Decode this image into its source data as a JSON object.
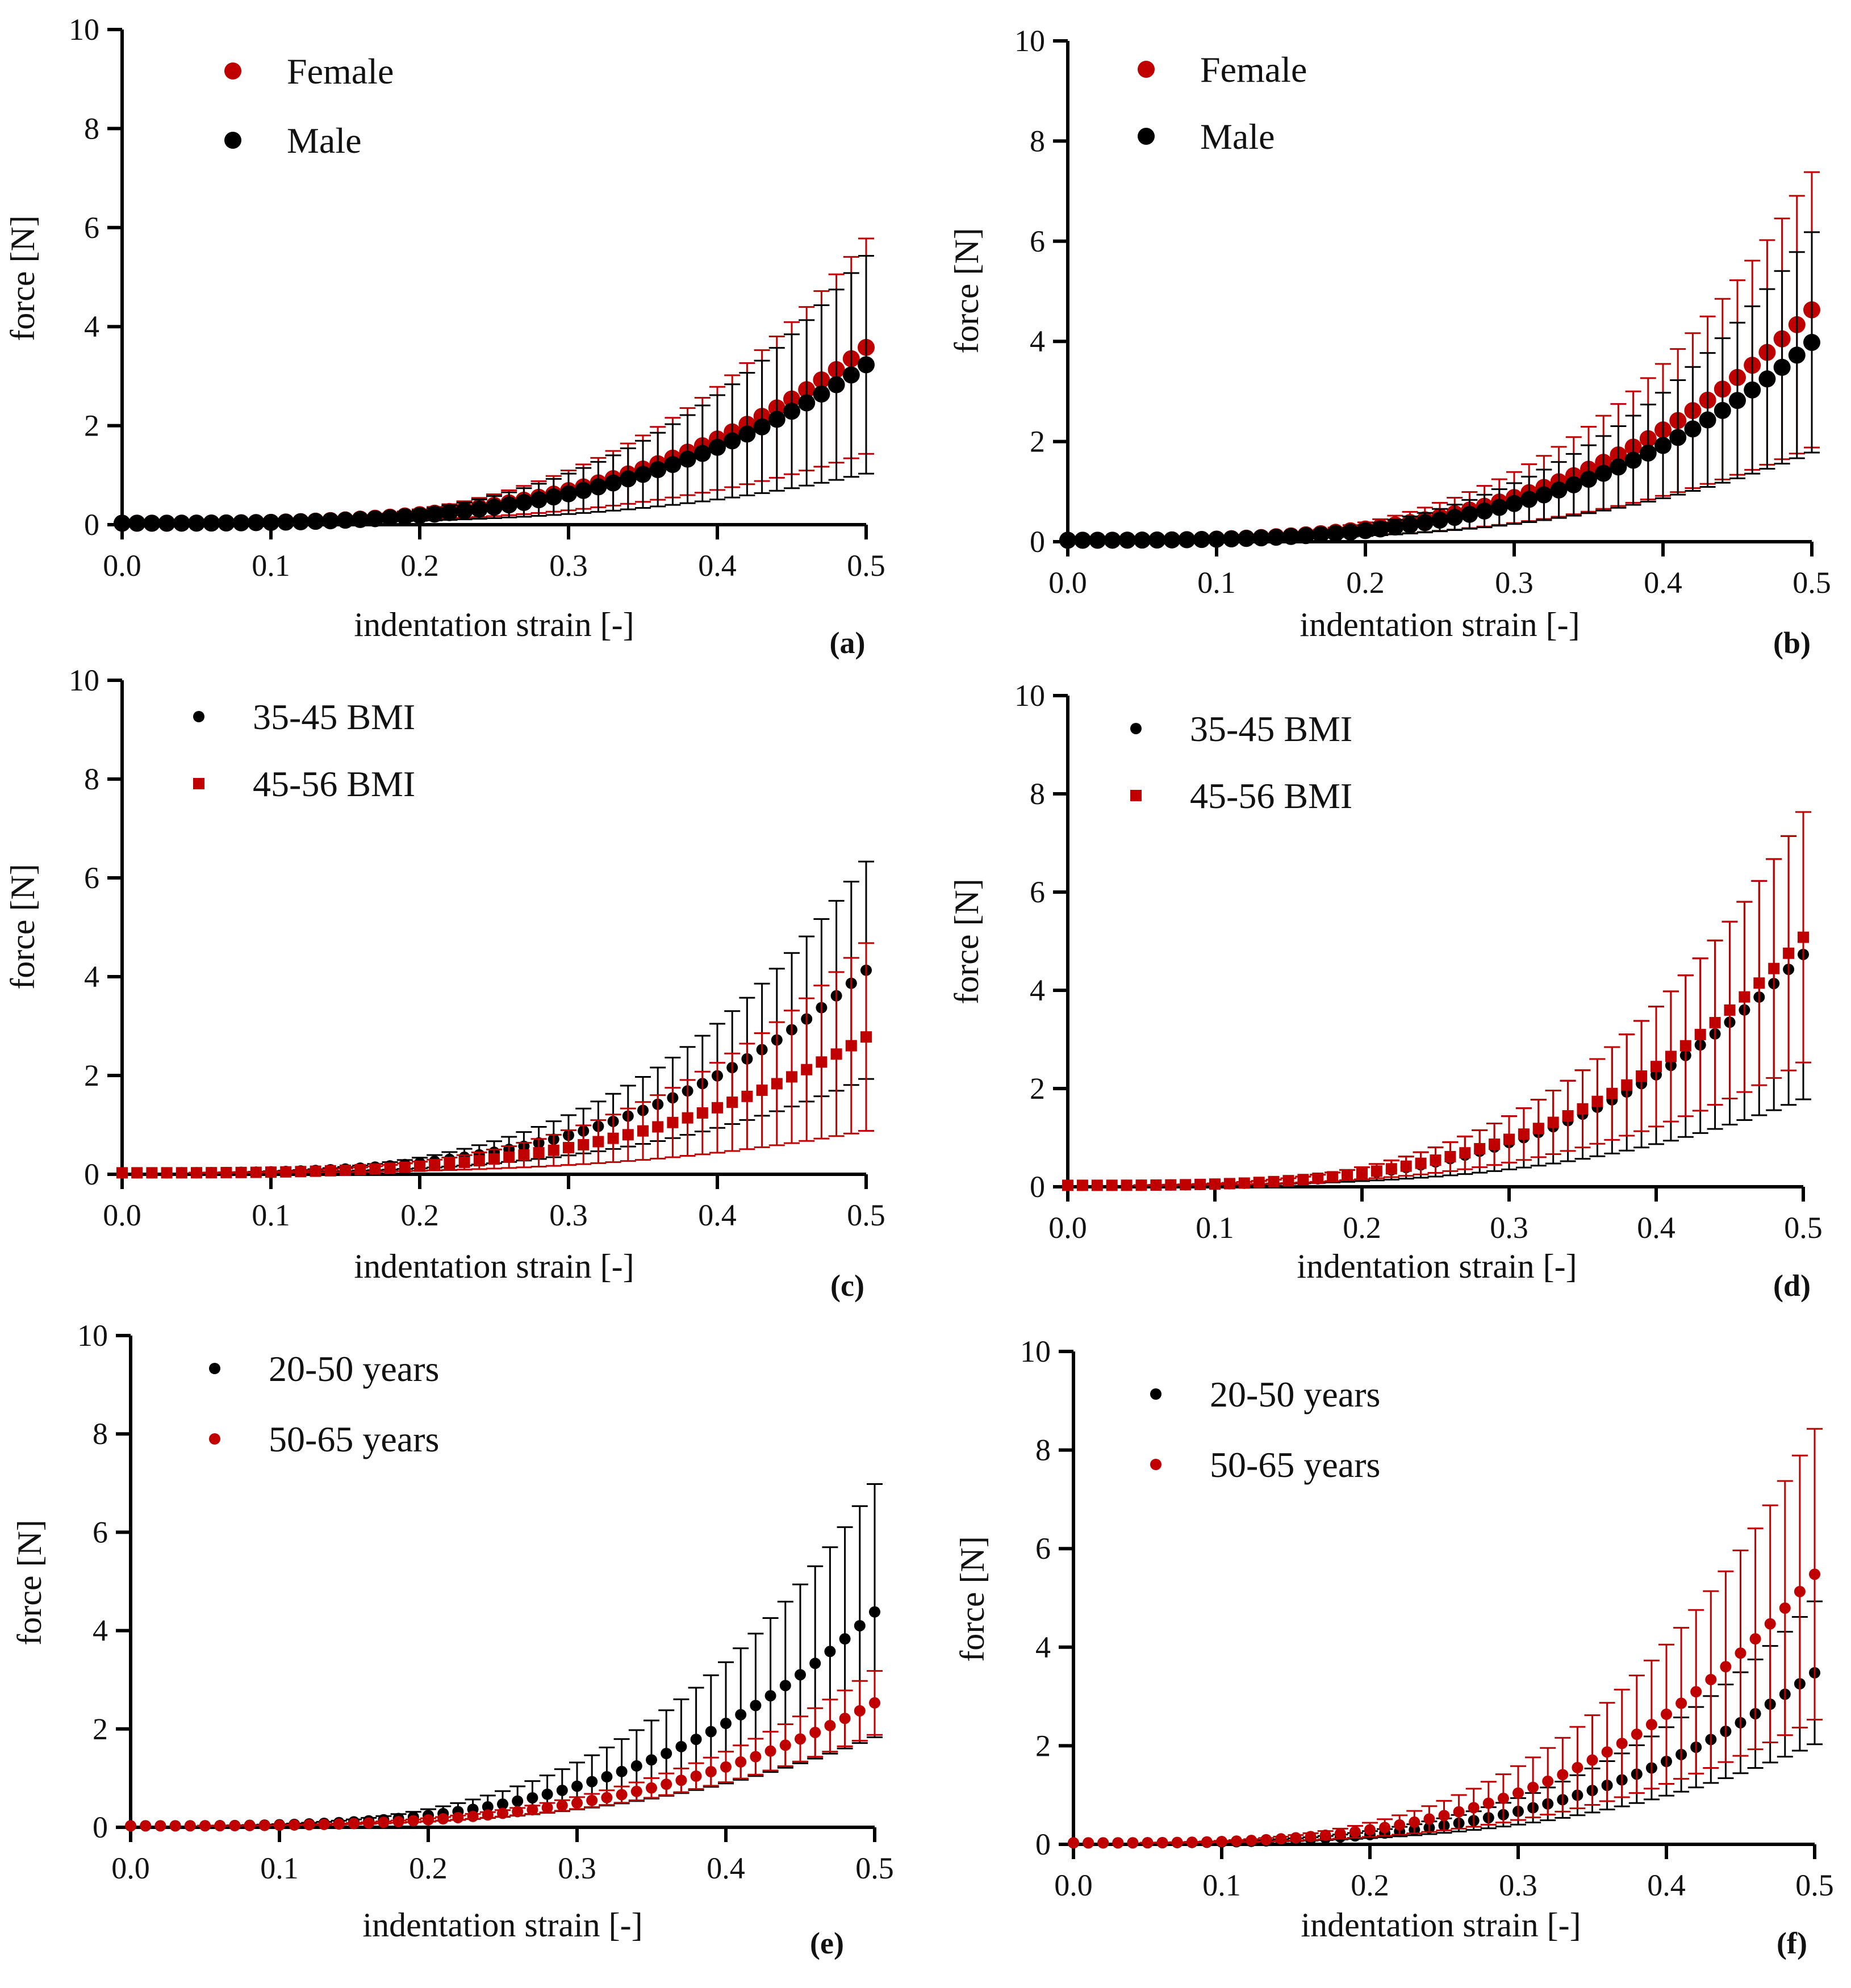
{
  "figure": {
    "panel_count": 6
  },
  "colors": {
    "female": "#c00000",
    "male": "#000000",
    "axis": "#000000"
  },
  "chart_data": [
    {
      "panel": "(a)",
      "type": "scatter",
      "xlabel": "indentation strain [-]",
      "ylabel": "force [N]",
      "xlim": [
        0,
        0.5
      ],
      "ylim": [
        0,
        10
      ],
      "xticks": [
        "0.0",
        "0.1",
        "0.2",
        "0.3",
        "0.4",
        "0.5"
      ],
      "yticks": [
        "0",
        "2",
        "4",
        "6",
        "8",
        "10"
      ],
      "legend_position": "top-left",
      "series": [
        {
          "name": "Female",
          "color": "#c00000",
          "marker": "circle",
          "marker_size": "large",
          "final_value": 3.55,
          "upper_final": 5.75,
          "lower_final": 1.4
        },
        {
          "name": "Male",
          "color": "#000000",
          "marker": "circle",
          "marker_size": "large",
          "final_value": 3.2,
          "upper_final": 5.4,
          "lower_final": 1.0
        }
      ]
    },
    {
      "panel": "(b)",
      "type": "scatter",
      "xlabel": "indentation strain [-]",
      "ylabel": "force [N]",
      "xlim": [
        0,
        0.5
      ],
      "ylim": [
        0,
        10
      ],
      "xticks": [
        "0.0",
        "0.1",
        "0.2",
        "0.3",
        "0.4",
        "0.5"
      ],
      "yticks": [
        "0",
        "2",
        "4",
        "6",
        "8",
        "10"
      ],
      "legend_position": "top-left",
      "series": [
        {
          "name": "Female",
          "color": "#c00000",
          "marker": "circle",
          "marker_size": "large",
          "final_value": 4.6,
          "upper_final": 7.35,
          "lower_final": 1.85
        },
        {
          "name": "Male",
          "color": "#000000",
          "marker": "circle",
          "marker_size": "large",
          "final_value": 3.95,
          "upper_final": 6.15,
          "lower_final": 1.75
        }
      ]
    },
    {
      "panel": "(c)",
      "type": "scatter",
      "xlabel": "indentation strain [-]",
      "ylabel": "force [N]",
      "xlim": [
        0,
        0.5
      ],
      "ylim": [
        0,
        10
      ],
      "xticks": [
        "0.0",
        "0.1",
        "0.2",
        "0.3",
        "0.4",
        "0.5"
      ],
      "yticks": [
        "0",
        "2",
        "4",
        "6",
        "8",
        "10"
      ],
      "legend_position": "top-left",
      "series": [
        {
          "name": "35-45 BMI",
          "color": "#000000",
          "marker": "circle",
          "marker_size": "small",
          "final_value": 4.1,
          "upper_final": 6.3,
          "lower_final": 1.9
        },
        {
          "name": "45-56 BMI",
          "color": "#c00000",
          "marker": "square",
          "marker_size": "small",
          "final_value": 2.75,
          "upper_final": 4.65,
          "lower_final": 0.85
        }
      ]
    },
    {
      "panel": "(d)",
      "type": "scatter",
      "xlabel": "indentation strain [-]",
      "ylabel": "force [N]",
      "xlim": [
        0,
        0.5
      ],
      "ylim": [
        0,
        10
      ],
      "xticks": [
        "0.0",
        "0.1",
        "0.2",
        "0.3",
        "0.4",
        "0.5"
      ],
      "yticks": [
        "0",
        "2",
        "4",
        "6",
        "8",
        "10"
      ],
      "legend_position": "top-left",
      "series": [
        {
          "name": "35-45 BMI",
          "color": "#000000",
          "marker": "circle",
          "marker_size": "small",
          "final_value": 4.7,
          "upper_final": 7.6,
          "lower_final": 1.75
        },
        {
          "name": "45-56 BMI",
          "color": "#c00000",
          "marker": "square",
          "marker_size": "small",
          "final_value": 5.05,
          "upper_final": 7.6,
          "lower_final": 2.5
        }
      ]
    },
    {
      "panel": "(e)",
      "type": "scatter",
      "xlabel": "indentation strain [-]",
      "ylabel": "force [N]",
      "xlim": [
        0,
        0.5
      ],
      "ylim": [
        0,
        10
      ],
      "xticks": [
        "0.0",
        "0.1",
        "0.2",
        "0.3",
        "0.4",
        "0.5"
      ],
      "yticks": [
        "0",
        "2",
        "4",
        "6",
        "8",
        "10"
      ],
      "legend_position": "top-left",
      "series": [
        {
          "name": "20-50 years",
          "color": "#000000",
          "marker": "circle",
          "marker_size": "small",
          "final_value": 4.35,
          "upper_final": 6.95,
          "lower_final": 1.8
        },
        {
          "name": "50-65 years",
          "color": "#c00000",
          "marker": "circle",
          "marker_size": "small",
          "final_value": 2.5,
          "upper_final": 3.15,
          "lower_final": 1.85
        }
      ]
    },
    {
      "panel": "(f)",
      "type": "scatter",
      "xlabel": "indentation strain [-]",
      "ylabel": "force [N]",
      "xlim": [
        0,
        0.5
      ],
      "ylim": [
        0,
        10
      ],
      "xticks": [
        "0.0",
        "0.1",
        "0.2",
        "0.3",
        "0.4",
        "0.5"
      ],
      "yticks": [
        "0",
        "2",
        "4",
        "6",
        "8",
        "10"
      ],
      "legend_position": "top-left",
      "series": [
        {
          "name": "20-50 years",
          "color": "#000000",
          "marker": "circle",
          "marker_size": "small",
          "final_value": 3.45,
          "upper_final": 4.9,
          "lower_final": 2.0
        },
        {
          "name": "50-65 years",
          "color": "#c00000",
          "marker": "circle",
          "marker_size": "small",
          "final_value": 5.45,
          "upper_final": 8.4,
          "lower_final": 2.5
        }
      ]
    }
  ]
}
